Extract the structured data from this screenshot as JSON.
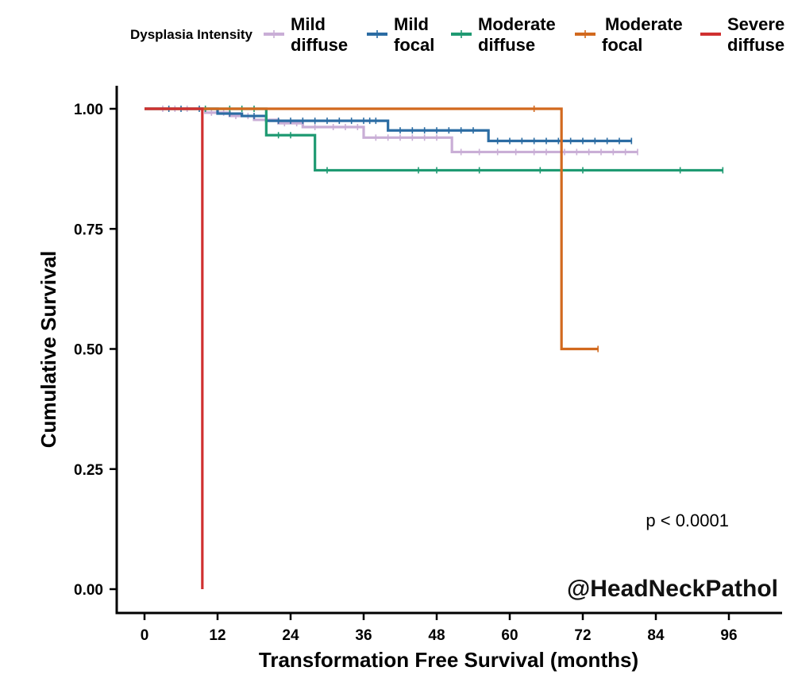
{
  "chart_data": {
    "type": "line",
    "subtype": "kaplan-meier step",
    "title": "",
    "xlabel": "Transformation Free Survival (months)",
    "ylabel": "Cumulative Survival",
    "xlim": [
      -5,
      104
    ],
    "ylim": [
      0,
      1.05
    ],
    "x_ticks": [
      0,
      12,
      24,
      36,
      48,
      60,
      72,
      84,
      96
    ],
    "y_ticks": [
      0,
      0.25,
      0.5,
      0.75,
      1.0
    ],
    "y_tick_labels": [
      "0.00",
      "0.25",
      "0.50",
      "0.75",
      "1.00"
    ],
    "grid": false,
    "legend": {
      "title": "Dysplasia Intensity",
      "position": "top"
    },
    "annotation": "p < 0.0001",
    "watermark": "@HeadNeckPathol",
    "series": [
      {
        "name": "Mild diffuse",
        "color": "#c9aed6",
        "steps": [
          [
            0,
            1.0
          ],
          [
            10,
            0.992
          ],
          [
            14,
            0.985
          ],
          [
            18,
            0.977
          ],
          [
            22,
            0.97
          ],
          [
            26,
            0.962
          ],
          [
            36,
            0.94
          ],
          [
            50.5,
            0.91
          ],
          [
            81,
            0.91
          ]
        ],
        "censors": [
          [
            3,
            1.0
          ],
          [
            5,
            1.0
          ],
          [
            7,
            1.0
          ],
          [
            11,
            0.992
          ],
          [
            13,
            0.992
          ],
          [
            15,
            0.985
          ],
          [
            17,
            0.985
          ],
          [
            20,
            0.977
          ],
          [
            23,
            0.97
          ],
          [
            25,
            0.97
          ],
          [
            28,
            0.962
          ],
          [
            31,
            0.962
          ],
          [
            33,
            0.962
          ],
          [
            35,
            0.962
          ],
          [
            38,
            0.94
          ],
          [
            40,
            0.94
          ],
          [
            42,
            0.94
          ],
          [
            44,
            0.94
          ],
          [
            46,
            0.94
          ],
          [
            48,
            0.94
          ],
          [
            52,
            0.91
          ],
          [
            55,
            0.91
          ],
          [
            58,
            0.91
          ],
          [
            61,
            0.91
          ],
          [
            64,
            0.91
          ],
          [
            66,
            0.91
          ],
          [
            69,
            0.91
          ],
          [
            71,
            0.91
          ],
          [
            73,
            0.91
          ],
          [
            75,
            0.91
          ],
          [
            77,
            0.91
          ],
          [
            79,
            0.91
          ],
          [
            81,
            0.91
          ]
        ]
      },
      {
        "name": "Mild focal",
        "color": "#2b6ca3",
        "steps": [
          [
            0,
            1.0
          ],
          [
            12,
            0.99
          ],
          [
            16,
            0.985
          ],
          [
            20,
            0.975
          ],
          [
            40,
            0.955
          ],
          [
            56.5,
            0.933
          ],
          [
            80,
            0.933
          ]
        ],
        "censors": [
          [
            4,
            1.0
          ],
          [
            6,
            1.0
          ],
          [
            9,
            1.0
          ],
          [
            14,
            0.99
          ],
          [
            18,
            0.985
          ],
          [
            22,
            0.975
          ],
          [
            24,
            0.975
          ],
          [
            26,
            0.975
          ],
          [
            28,
            0.975
          ],
          [
            30,
            0.975
          ],
          [
            32,
            0.975
          ],
          [
            34,
            0.975
          ],
          [
            36,
            0.975
          ],
          [
            37,
            0.975
          ],
          [
            38,
            0.975
          ],
          [
            42,
            0.955
          ],
          [
            44,
            0.955
          ],
          [
            46,
            0.955
          ],
          [
            48,
            0.955
          ],
          [
            50,
            0.955
          ],
          [
            52,
            0.955
          ],
          [
            54,
            0.955
          ],
          [
            58,
            0.933
          ],
          [
            60,
            0.933
          ],
          [
            62,
            0.933
          ],
          [
            64,
            0.933
          ],
          [
            66,
            0.933
          ],
          [
            68,
            0.933
          ],
          [
            70,
            0.933
          ],
          [
            72,
            0.933
          ],
          [
            74,
            0.933
          ],
          [
            76,
            0.933
          ],
          [
            78,
            0.933
          ],
          [
            80,
            0.933
          ]
        ]
      },
      {
        "name": "Moderate diffuse",
        "color": "#1f9a72",
        "steps": [
          [
            0,
            1.0
          ],
          [
            20,
            0.945
          ],
          [
            28,
            0.872
          ],
          [
            95,
            0.872
          ]
        ],
        "censors": [
          [
            10,
            1.0
          ],
          [
            14,
            1.0
          ],
          [
            16,
            1.0
          ],
          [
            18,
            1.0
          ],
          [
            22,
            0.945
          ],
          [
            24,
            0.945
          ],
          [
            30,
            0.872
          ],
          [
            45,
            0.872
          ],
          [
            48,
            0.872
          ],
          [
            55,
            0.872
          ],
          [
            65,
            0.872
          ],
          [
            72,
            0.872
          ],
          [
            88,
            0.872
          ],
          [
            95,
            0.872
          ]
        ]
      },
      {
        "name": "Moderate focal",
        "color": "#d2691e",
        "steps": [
          [
            0,
            1.0
          ],
          [
            68.5,
            0.5
          ],
          [
            74.5,
            0.5
          ]
        ],
        "censors": [
          [
            64,
            1.0
          ],
          [
            74.5,
            0.5
          ]
        ]
      },
      {
        "name": "Severe diffuse",
        "color": "#d03030",
        "steps": [
          [
            0,
            1.0
          ],
          [
            9.5,
            0.0
          ]
        ],
        "censors": []
      }
    ]
  },
  "legend_labels": [
    [
      "Mild",
      "diffuse"
    ],
    [
      "Mild",
      "focal"
    ],
    [
      "Moderate",
      "diffuse"
    ],
    [
      "Moderate",
      "focal"
    ],
    [
      "Severe",
      "diffuse"
    ]
  ]
}
